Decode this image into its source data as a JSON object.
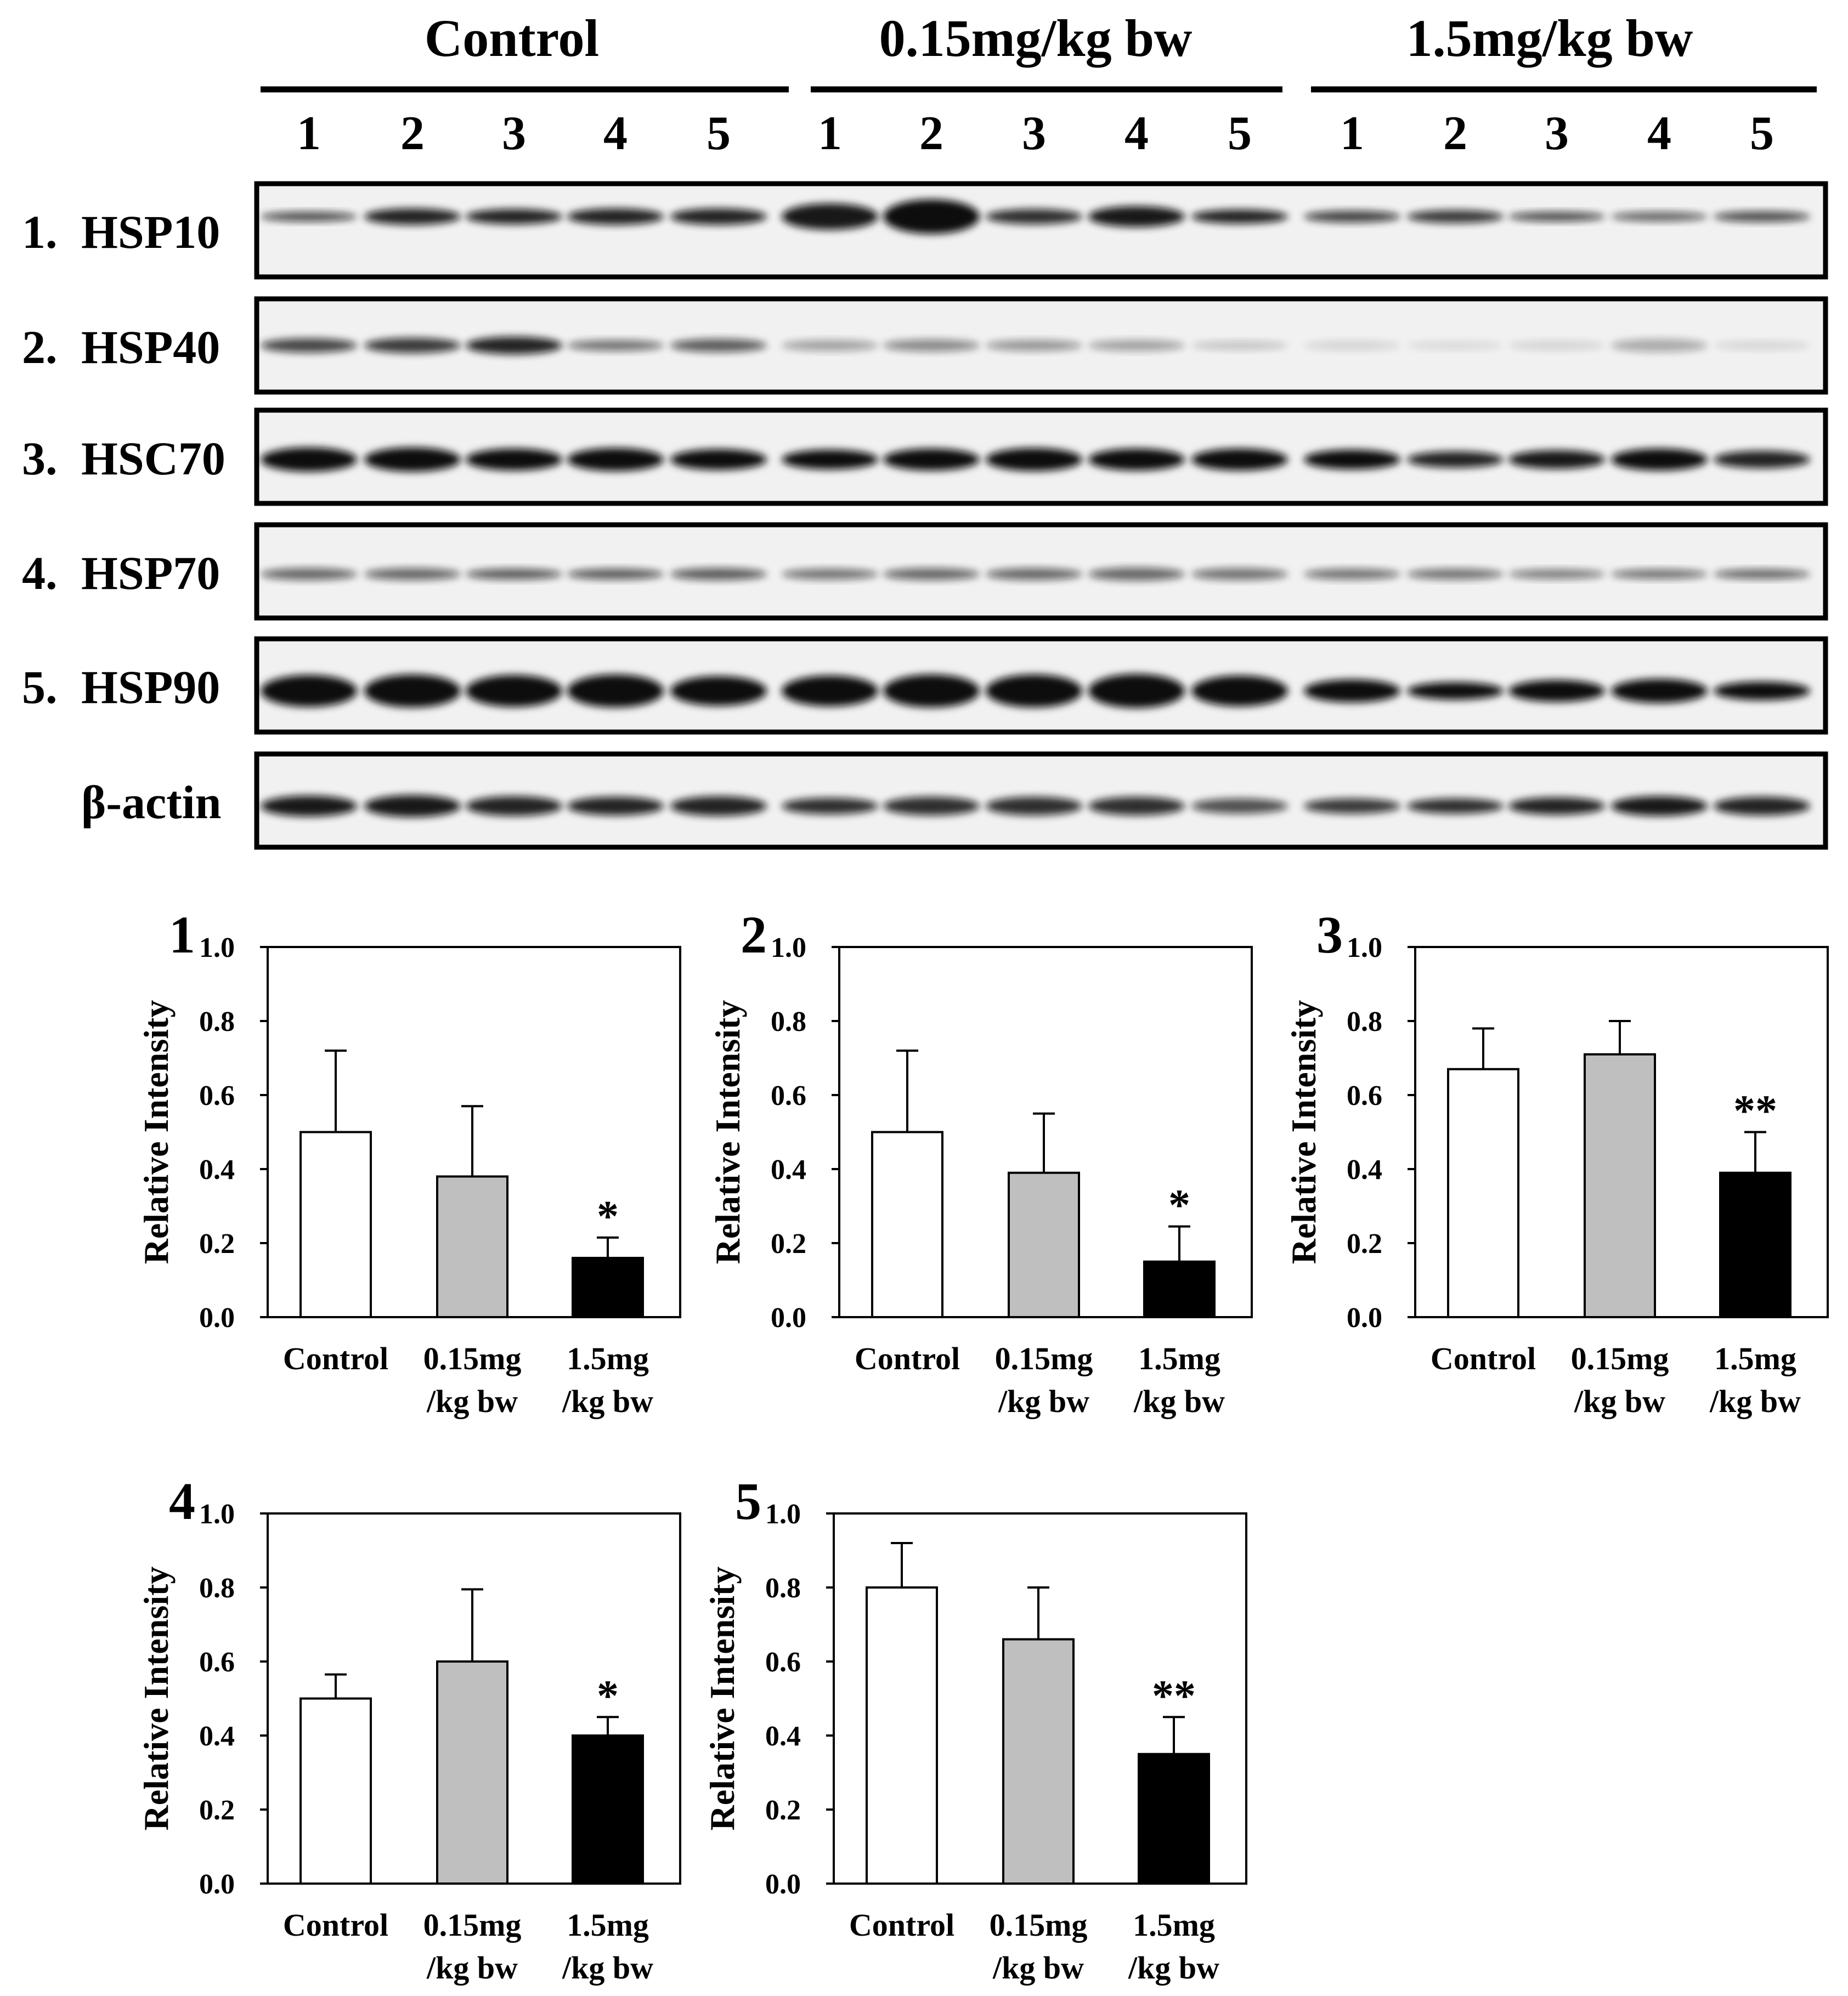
{
  "blot": {
    "groups": [
      {
        "label": "Control",
        "lanes": [
          "1",
          "2",
          "3",
          "4",
          "5"
        ]
      },
      {
        "label": "0.15mg/kg bw",
        "lanes": [
          "1",
          "2",
          "3",
          "4",
          "5"
        ]
      },
      {
        "label": "1.5mg/kg bw",
        "lanes": [
          "1",
          "2",
          "3",
          "4",
          "5"
        ]
      }
    ],
    "rows": [
      {
        "num": "1.",
        "name": "HSP10"
      },
      {
        "num": "2.",
        "name": "HSP40"
      },
      {
        "num": "3.",
        "name": "HSC70"
      },
      {
        "num": "4.",
        "name": "HSP70"
      },
      {
        "num": "5.",
        "name": "HSP90"
      },
      {
        "num": "",
        "name": "β-actin"
      }
    ]
  },
  "bar_colors": [
    "#ffffff",
    "#bfbfbf",
    "#000000"
  ],
  "chart_data": [
    {
      "type": "bar",
      "panel": "1",
      "ylabel": "Relative Intensity",
      "ylim": [
        0,
        1.0
      ],
      "yticks": [
        "0.0",
        "0.2",
        "0.4",
        "0.6",
        "0.8",
        "1.0"
      ],
      "categories": [
        [
          "Control"
        ],
        [
          "0.15mg",
          "/kg bw"
        ],
        [
          "1.5mg",
          "/kg bw"
        ]
      ],
      "values": [
        0.5,
        0.38,
        0.16
      ],
      "errors": [
        0.22,
        0.19,
        0.055
      ],
      "significance": [
        "",
        "",
        "*"
      ]
    },
    {
      "type": "bar",
      "panel": "2",
      "ylabel": "Relative Intensity",
      "ylim": [
        0,
        1.0
      ],
      "yticks": [
        "0.0",
        "0.2",
        "0.4",
        "0.6",
        "0.8",
        "1.0"
      ],
      "categories": [
        [
          "Control"
        ],
        [
          "0.15mg",
          "/kg bw"
        ],
        [
          "1.5mg",
          "/kg bw"
        ]
      ],
      "values": [
        0.5,
        0.39,
        0.15
      ],
      "errors": [
        0.22,
        0.16,
        0.095
      ],
      "significance": [
        "",
        "",
        "*"
      ]
    },
    {
      "type": "bar",
      "panel": "3",
      "ylabel": "Relative Intensity",
      "ylim": [
        0,
        1.0
      ],
      "yticks": [
        "0.0",
        "0.2",
        "0.4",
        "0.6",
        "0.8",
        "1.0"
      ],
      "categories": [
        [
          "Control"
        ],
        [
          "0.15mg",
          "/kg bw"
        ],
        [
          "1.5mg",
          "/kg bw"
        ]
      ],
      "values": [
        0.67,
        0.71,
        0.39
      ],
      "errors": [
        0.11,
        0.09,
        0.11
      ],
      "significance": [
        "",
        "",
        "**"
      ]
    },
    {
      "type": "bar",
      "panel": "4",
      "ylabel": "Relative Intensity",
      "ylim": [
        0,
        1.0
      ],
      "yticks": [
        "0.0",
        "0.2",
        "0.4",
        "0.6",
        "0.8",
        "1.0"
      ],
      "categories": [
        [
          "Control"
        ],
        [
          "0.15mg",
          "/kg bw"
        ],
        [
          "1.5mg",
          "/kg bw"
        ]
      ],
      "values": [
        0.5,
        0.6,
        0.4
      ],
      "errors": [
        0.065,
        0.195,
        0.05
      ],
      "significance": [
        "",
        "",
        "*"
      ]
    },
    {
      "type": "bar",
      "panel": "5",
      "ylabel": "Relative Intensity",
      "ylim": [
        0,
        1.0
      ],
      "yticks": [
        "0.0",
        "0.2",
        "0.4",
        "0.6",
        "0.8",
        "1.0"
      ],
      "categories": [
        [
          "Control"
        ],
        [
          "0.15mg",
          "/kg bw"
        ],
        [
          "1.5mg",
          "/kg bw"
        ]
      ],
      "values": [
        0.8,
        0.66,
        0.35
      ],
      "errors": [
        0.12,
        0.14,
        0.1
      ],
      "significance": [
        "",
        "",
        "**"
      ]
    }
  ]
}
